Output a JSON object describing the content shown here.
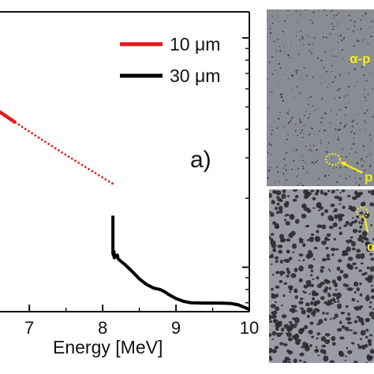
{
  "chart_data": {
    "type": "line",
    "panel_label": "a)",
    "xlabel": "Energy [MeV]",
    "ylabel": "",
    "xlim": [
      6.6,
      10.0
    ],
    "ylim_log": [
      0.64,
      13.0
    ],
    "x_ticks": [
      7,
      8,
      9,
      10
    ],
    "legend_placement": "top-right",
    "series": [
      {
        "name": "10 μm",
        "color": "#e31a1c",
        "solid": [
          [
            6.6,
            4.75
          ],
          [
            6.8,
            4.3
          ]
        ],
        "dotted": [
          [
            6.8,
            4.3
          ],
          [
            7.2,
            3.55
          ],
          [
            7.6,
            2.95
          ],
          [
            8.15,
            2.3
          ]
        ]
      },
      {
        "name": "30 μm",
        "color": "#000000",
        "points": [
          [
            8.14,
            1.68
          ],
          [
            8.14,
            1.15
          ],
          [
            8.15,
            1.12
          ],
          [
            8.155,
            1.17
          ],
          [
            8.16,
            1.1
          ],
          [
            8.18,
            1.12
          ],
          [
            8.2,
            1.13
          ],
          [
            8.21,
            1.09
          ],
          [
            8.25,
            1.06
          ],
          [
            8.3,
            1.03
          ],
          [
            8.4,
            0.96
          ],
          [
            8.5,
            0.89
          ],
          [
            8.6,
            0.84
          ],
          [
            8.7,
            0.81
          ],
          [
            8.78,
            0.8
          ],
          [
            8.85,
            0.78
          ],
          [
            8.9,
            0.76
          ],
          [
            9.0,
            0.73
          ],
          [
            9.1,
            0.71
          ],
          [
            9.2,
            0.7
          ],
          [
            9.4,
            0.698
          ],
          [
            9.6,
            0.698
          ],
          [
            9.75,
            0.695
          ],
          [
            9.85,
            0.685
          ],
          [
            9.95,
            0.665
          ],
          [
            10.0,
            0.655
          ]
        ]
      }
    ]
  },
  "micrographs": {
    "top_label": "α-p",
    "top_marker_label": "p",
    "bottom_label": "α"
  },
  "colors": {
    "annotation": "#f2ea1c",
    "top_image_bg": "#8a8c93",
    "bottom_image_bg": "#9a9ca3"
  }
}
